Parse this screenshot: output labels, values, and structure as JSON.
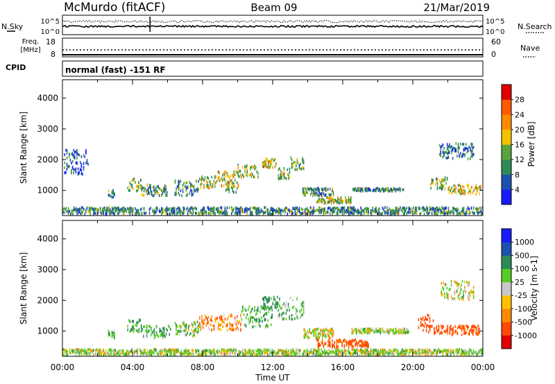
{
  "header": {
    "station": "McMurdo (fitACF)",
    "beam": "Beam 09",
    "date": "21/Mar/2019"
  },
  "noise_panel": {
    "left_label": "N.Sky",
    "right_label": "N.Search",
    "left_ticks": [
      "10^5",
      "10^0"
    ],
    "right_ticks": [
      "10^5",
      "10^0"
    ]
  },
  "freq_panel": {
    "left_label_line1": "Freq.",
    "left_label_line2": "[MHz]",
    "left_ticks": [
      "18",
      "8"
    ],
    "right_label": "Nave",
    "right_ticks": [
      "60",
      "0"
    ]
  },
  "cpid_panel": {
    "label": "CPID",
    "value": "normal (fast) -151 RF"
  },
  "colors": {
    "power_scale": [
      "#1a1aff",
      "#1f4fb0",
      "#2e8b57",
      "#5aa33c",
      "#f2c200",
      "#ff8c00",
      "#ff5a00",
      "#e00000"
    ],
    "velocity_scale": [
      "#e00000",
      "#ff4a00",
      "#ff8a00",
      "#ffc000",
      "#c8c8c8",
      "#55cc22",
      "#2e8b57",
      "#1f4fb0",
      "#1a1aff"
    ]
  },
  "chart_data": [
    {
      "type": "heatmap",
      "panel": "power",
      "ylabel": "Slant Range [km]",
      "yticks": [
        "4000",
        "3000",
        "2000",
        "1000"
      ],
      "ylim": [
        180,
        4600
      ],
      "xlim": [
        0,
        24
      ],
      "colorbar": {
        "label": "Power [dB]",
        "ticks": [
          "28",
          "24",
          "20",
          "16",
          "12",
          "8",
          "4"
        ],
        "range": [
          0,
          32
        ]
      },
      "echo_bands": [
        {
          "t0": 0.0,
          "t1": 24.0,
          "r0": 200,
          "r1": 420,
          "intensity": 10
        },
        {
          "t0": 2.6,
          "t1": 3.0,
          "r0": 750,
          "r1": 1000,
          "intensity": 10
        },
        {
          "t0": 3.7,
          "t1": 4.5,
          "r0": 950,
          "r1": 1350,
          "intensity": 14
        },
        {
          "t0": 4.5,
          "t1": 6.0,
          "r0": 800,
          "r1": 1150,
          "intensity": 12
        },
        {
          "t0": 6.4,
          "t1": 7.8,
          "r0": 800,
          "r1": 1300,
          "intensity": 10
        },
        {
          "t0": 7.8,
          "t1": 8.8,
          "r0": 1050,
          "r1": 1450,
          "intensity": 14
        },
        {
          "t0": 8.8,
          "t1": 10.2,
          "r0": 1100,
          "r1": 1600,
          "intensity": 18
        },
        {
          "t0": 9.3,
          "t1": 10.0,
          "r0": 900,
          "r1": 1300,
          "intensity": 12
        },
        {
          "t0": 10.0,
          "t1": 11.2,
          "r0": 1400,
          "r1": 1800,
          "intensity": 14
        },
        {
          "t0": 11.4,
          "t1": 12.3,
          "r0": 1700,
          "r1": 2000,
          "intensity": 18
        },
        {
          "t0": 12.3,
          "t1": 13.0,
          "r0": 1350,
          "r1": 1700,
          "intensity": 14
        },
        {
          "t0": 13.0,
          "t1": 13.8,
          "r0": 1650,
          "r1": 2050,
          "intensity": 12
        },
        {
          "t0": 13.7,
          "t1": 15.5,
          "r0": 800,
          "r1": 1050,
          "intensity": 10
        },
        {
          "t0": 14.5,
          "t1": 16.5,
          "r0": 550,
          "r1": 750,
          "intensity": 16
        },
        {
          "t0": 16.5,
          "t1": 19.5,
          "r0": 950,
          "r1": 1050,
          "intensity": 10
        },
        {
          "t0": 21.0,
          "t1": 22.0,
          "r0": 1000,
          "r1": 1400,
          "intensity": 14
        },
        {
          "t0": 22.0,
          "t1": 23.9,
          "r0": 850,
          "r1": 1150,
          "intensity": 18
        },
        {
          "t0": 21.5,
          "t1": 23.5,
          "r0": 2000,
          "r1": 2500,
          "intensity": 8
        },
        {
          "t0": 0.1,
          "t1": 1.5,
          "r0": 1500,
          "r1": 2300,
          "intensity": 6
        }
      ]
    },
    {
      "type": "heatmap",
      "panel": "velocity",
      "ylabel": "Slant Range [km]",
      "yticks": [
        "4000",
        "3000",
        "2000",
        "1000"
      ],
      "ylim": [
        180,
        4600
      ],
      "xlim": [
        0,
        24
      ],
      "xlabel": "Time UT",
      "xticks": [
        "00:00",
        "04:00",
        "08:00",
        "12:00",
        "16:00",
        "20:00",
        "00:00"
      ],
      "colorbar": {
        "label": "Velocity [m s-1]",
        "ticks": [
          "1000",
          "500",
          "100",
          "25",
          "-25",
          "-100",
          "-500",
          "-1000"
        ]
      },
      "echo_bands": [
        {
          "t0": 0.0,
          "t1": 24.0,
          "r0": 200,
          "r1": 380,
          "velocity": 40
        },
        {
          "t0": 2.6,
          "t1": 3.0,
          "r0": 750,
          "r1": 1000,
          "velocity": 80
        },
        {
          "t0": 3.7,
          "t1": 4.6,
          "r0": 950,
          "r1": 1350,
          "velocity": 150
        },
        {
          "t0": 4.6,
          "t1": 6.2,
          "r0": 750,
          "r1": 1150,
          "velocity": 120
        },
        {
          "t0": 6.4,
          "t1": 7.8,
          "r0": 800,
          "r1": 1300,
          "velocity": 60
        },
        {
          "t0": 7.8,
          "t1": 10.2,
          "r0": 1000,
          "r1": 1500,
          "velocity": -60
        },
        {
          "t0": 10.2,
          "t1": 12.0,
          "r0": 1100,
          "r1": 1800,
          "velocity": 100
        },
        {
          "t0": 11.4,
          "t1": 12.3,
          "r0": 1700,
          "r1": 2100,
          "velocity": 150
        },
        {
          "t0": 12.3,
          "t1": 13.8,
          "r0": 1350,
          "r1": 2050,
          "velocity": 80
        },
        {
          "t0": 13.7,
          "t1": 15.5,
          "r0": 750,
          "r1": 1050,
          "velocity": 20
        },
        {
          "t0": 14.5,
          "t1": 17.5,
          "r0": 450,
          "r1": 700,
          "velocity": -150
        },
        {
          "t0": 16.5,
          "t1": 19.8,
          "r0": 900,
          "r1": 1050,
          "velocity": 40
        },
        {
          "t0": 20.3,
          "t1": 21.2,
          "r0": 900,
          "r1": 1500,
          "velocity": -200
        },
        {
          "t0": 21.2,
          "t1": 23.9,
          "r0": 850,
          "r1": 1150,
          "velocity": -150
        },
        {
          "t0": 21.6,
          "t1": 23.5,
          "r0": 2000,
          "r1": 2600,
          "velocity": 30
        }
      ]
    }
  ]
}
